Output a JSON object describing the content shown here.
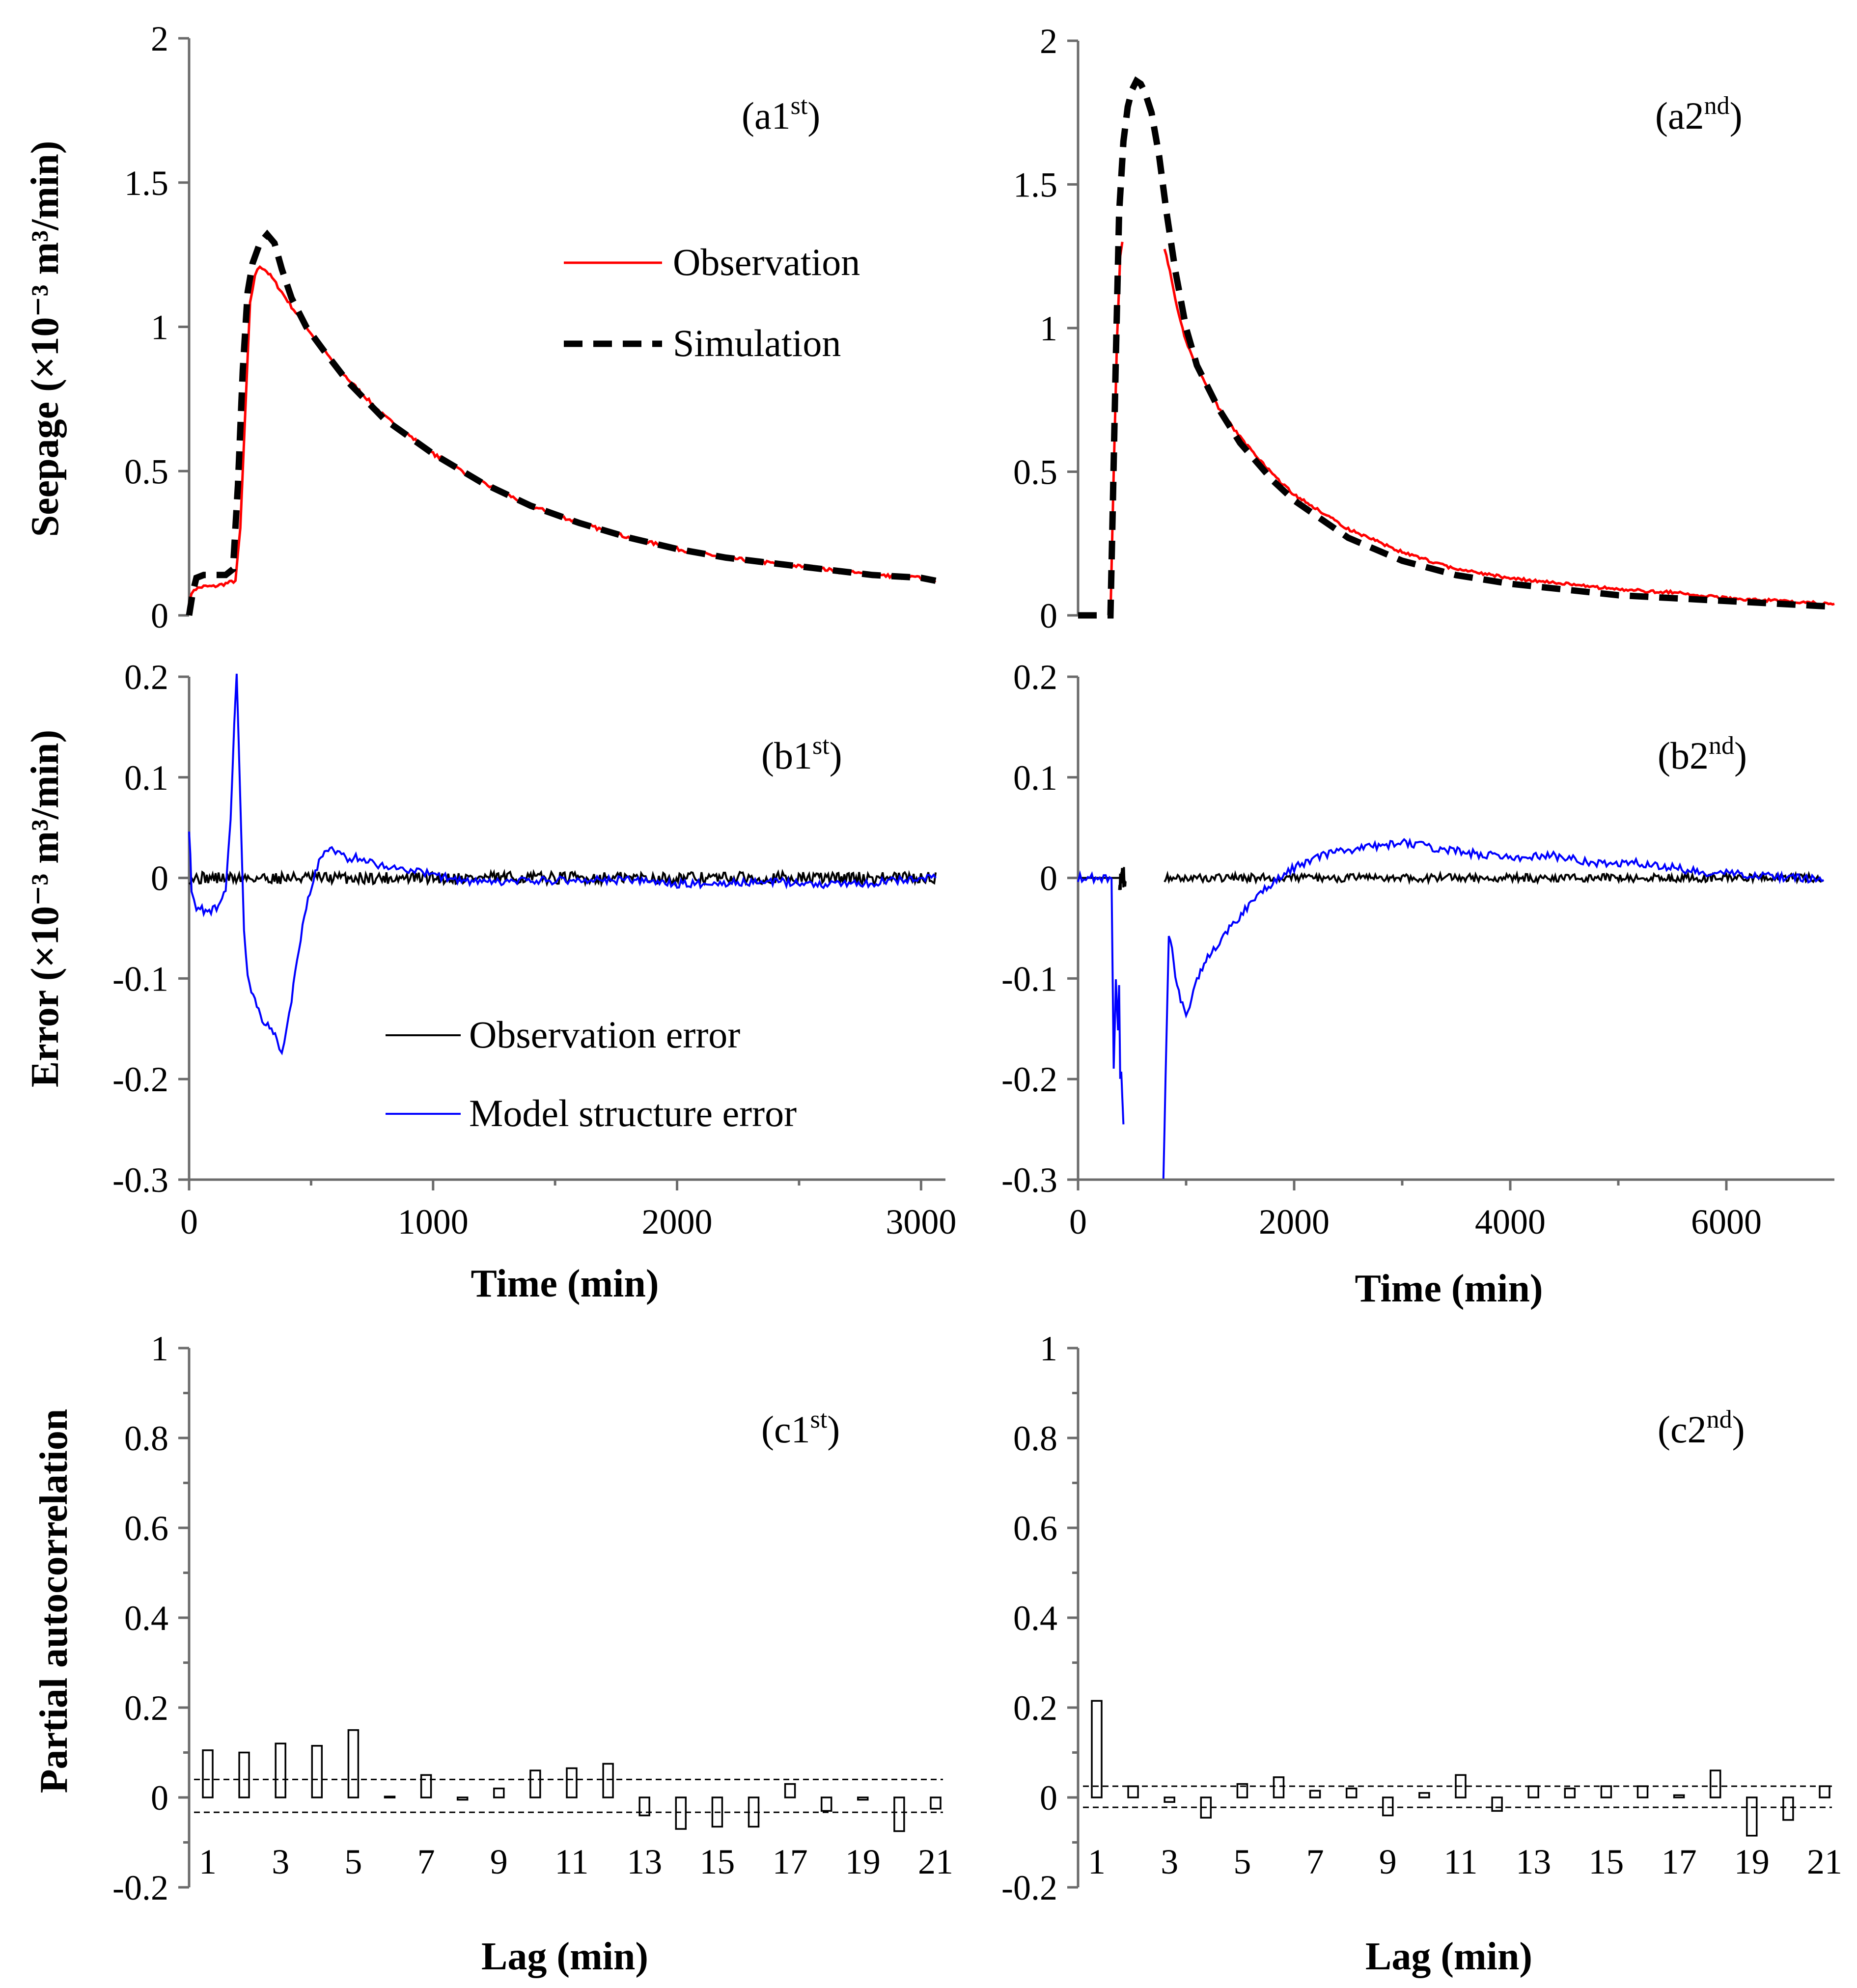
{
  "colors": {
    "observation": "#ff0000",
    "simulation": "#000000",
    "observation_error": "#000000",
    "model_structure_error": "#0000ff",
    "axis": "#6b6b6b",
    "bar_fill": "#ffffff",
    "bar_stroke": "#000000"
  },
  "labels": {
    "seepage_ylabel": "Seepage (×10⁻³ m³/min)",
    "error_ylabel": "Error (×10⁻³ m³/min)",
    "pacf_ylabel": "Partial autocorrelation",
    "time_xlabel": "Time (min)",
    "lag_xlabel": "Lag (min)"
  },
  "chart_data": [
    {
      "id": "a1st",
      "type": "line",
      "panel_label": "(a1st)",
      "xlim": [
        0,
        3100
      ],
      "ylim": [
        0,
        2
      ],
      "yticks": [
        "0",
        "0.5",
        "1",
        "1.5",
        "2"
      ],
      "legend": [
        "Observation",
        "Simulation"
      ],
      "legend_position": "right",
      "series": [
        {
          "name": "Observation",
          "x": [
            0,
            20,
            60,
            100,
            150,
            190,
            210,
            230,
            250,
            270,
            290,
            310,
            340,
            380,
            420,
            480,
            550,
            650,
            800,
            1000,
            1200,
            1400,
            1600,
            1800,
            2000,
            2200,
            2400,
            2600,
            2800,
            3000,
            3060
          ],
          "y": [
            0.05,
            0.09,
            0.1,
            0.1,
            0.11,
            0.12,
            0.3,
            0.7,
            1.08,
            1.18,
            1.21,
            1.2,
            1.17,
            1.12,
            1.07,
            1.0,
            0.92,
            0.82,
            0.69,
            0.56,
            0.46,
            0.38,
            0.32,
            0.27,
            0.23,
            0.2,
            0.18,
            0.16,
            0.14,
            0.13,
            0.12
          ]
        },
        {
          "name": "Simulation",
          "x": [
            0,
            15,
            30,
            60,
            100,
            150,
            180,
            200,
            220,
            240,
            260,
            290,
            320,
            350,
            380,
            420,
            480,
            550,
            650,
            800,
            1000,
            1200,
            1400,
            1600,
            1800,
            2000,
            2200,
            2400,
            2600,
            2800,
            3000,
            3060
          ],
          "y": [
            0.0,
            0.08,
            0.13,
            0.14,
            0.14,
            0.14,
            0.16,
            0.45,
            0.85,
            1.12,
            1.22,
            1.29,
            1.32,
            1.29,
            1.2,
            1.1,
            1.0,
            0.92,
            0.81,
            0.68,
            0.56,
            0.46,
            0.38,
            0.32,
            0.27,
            0.23,
            0.2,
            0.18,
            0.16,
            0.14,
            0.13,
            0.12
          ]
        }
      ]
    },
    {
      "id": "a2nd",
      "type": "line",
      "panel_label": "(a2nd)",
      "xlim": [
        0,
        7000
      ],
      "ylim": [
        0,
        2
      ],
      "yticks": [
        "0",
        "0.5",
        "1",
        "1.5",
        "2"
      ],
      "series": [
        {
          "name": "Observation",
          "segments": [
            {
              "x": [
                300,
                330,
                360,
                390,
                410
              ],
              "y": [
                0.0,
                0.5,
                0.95,
                1.25,
                1.3
              ]
            },
            {
              "x": [
                800,
                850,
                900,
                1000,
                1100,
                1300,
                1500,
                1800,
                2000,
                2500,
                3000,
                3500,
                4000,
                4500,
                5000,
                5500,
                6000,
                6500,
                7000
              ],
              "y": [
                1.28,
                1.2,
                1.1,
                0.95,
                0.87,
                0.72,
                0.62,
                0.49,
                0.42,
                0.3,
                0.22,
                0.16,
                0.13,
                0.11,
                0.09,
                0.08,
                0.06,
                0.05,
                0.04
              ]
            }
          ]
        },
        {
          "name": "Simulation",
          "x": [
            0,
            300,
            320,
            350,
            380,
            420,
            460,
            500,
            540,
            580,
            620,
            680,
            750,
            820,
            900,
            1000,
            1100,
            1300,
            1500,
            1800,
            2000,
            2500,
            3000,
            3500,
            4000,
            4500,
            5000,
            5500,
            6000,
            6500,
            7000
          ],
          "y": [
            0.0,
            0.0,
            0.35,
            0.9,
            1.4,
            1.65,
            1.77,
            1.83,
            1.86,
            1.85,
            1.82,
            1.75,
            1.6,
            1.4,
            1.2,
            1.0,
            0.87,
            0.72,
            0.6,
            0.47,
            0.4,
            0.27,
            0.19,
            0.14,
            0.11,
            0.09,
            0.07,
            0.06,
            0.05,
            0.04,
            0.03
          ]
        }
      ]
    },
    {
      "id": "b1st",
      "type": "line",
      "panel_label": "(b1st)",
      "xlim": [
        0,
        3100
      ],
      "ylim": [
        -0.3,
        0.2
      ],
      "yticks": [
        "-0.3",
        "-0.2",
        "-0.1",
        "0",
        "0.1",
        "0.2"
      ],
      "legend": [
        "Observation error",
        "Model structure error"
      ],
      "legend_position": "bottom-right",
      "series": [
        {
          "name": "Observation error",
          "x": [
            0,
            3060
          ],
          "y": [
            0.0,
            0.0
          ],
          "noise_amplitude": 0.006
        },
        {
          "name": "Model structure error",
          "x": [
            0,
            10,
            30,
            60,
            90,
            120,
            150,
            170,
            185,
            195,
            210,
            225,
            240,
            270,
            300,
            330,
            360,
            380,
            400,
            420,
            450,
            480,
            510,
            540,
            570,
            600,
            650,
            700,
            750,
            800,
            850,
            900,
            1000,
            1100,
            1200,
            1400,
            1600,
            1800,
            2000,
            2200,
            2400,
            2600,
            2800,
            3000,
            3060
          ],
          "y": [
            0.05,
            -0.01,
            -0.03,
            -0.032,
            -0.032,
            -0.028,
            -0.01,
            0.06,
            0.15,
            0.2,
            0.08,
            -0.05,
            -0.1,
            -0.12,
            -0.14,
            -0.15,
            -0.16,
            -0.175,
            -0.15,
            -0.12,
            -0.07,
            -0.03,
            0.0,
            0.02,
            0.03,
            0.025,
            0.02,
            0.02,
            0.015,
            0.012,
            0.01,
            0.008,
            0.003,
            -0.002,
            -0.005,
            -0.003,
            -0.002,
            -0.002,
            -0.006,
            -0.005,
            -0.004,
            -0.006,
            -0.005,
            0.0,
            0.0
          ]
        }
      ]
    },
    {
      "id": "b2nd",
      "type": "line",
      "panel_label": "(b2nd)",
      "xlim": [
        0,
        7000
      ],
      "ylim": [
        -0.3,
        0.2
      ],
      "yticks": [
        "-0.3",
        "-0.2",
        "-0.1",
        "0",
        "0.1",
        "0.2"
      ],
      "series": [
        {
          "name": "Observation error",
          "segments": [
            {
              "x": [
                0,
                380
              ],
              "y": [
                0.0,
                0.0
              ]
            },
            {
              "x": [
                380,
                440
              ],
              "y": [
                0.0,
                0.0
              ],
              "noise_amplitude": 0.012
            },
            {
              "x": [
                800,
                6900
              ],
              "y": [
                0.0,
                0.0
              ],
              "noise_amplitude": 0.004
            }
          ]
        },
        {
          "name": "Model structure error",
          "segments": [
            {
              "x": [
                0,
                310,
                330,
                350,
                370,
                380,
                390,
                400,
                420
              ],
              "y": [
                0.0,
                0.0,
                -0.19,
                -0.1,
                -0.15,
                -0.11,
                -0.2,
                -0.19,
                -0.245
              ]
            },
            {
              "x": [
                790,
                810,
                840,
                870,
                900,
                950,
                1000,
                1100,
                1200,
                1400,
                1600,
                1800,
                2000,
                2200,
                2500,
                2800,
                3000,
                3300,
                3600,
                4000,
                4400,
                4800,
                5200,
                5500,
                5800,
                6000,
                6300,
                6600,
                6900
              ],
              "y": [
                -0.295,
                -0.2,
                -0.06,
                -0.07,
                -0.1,
                -0.12,
                -0.14,
                -0.1,
                -0.08,
                -0.05,
                -0.025,
                -0.005,
                0.01,
                0.02,
                0.028,
                0.032,
                0.035,
                0.03,
                0.025,
                0.02,
                0.022,
                0.015,
                0.015,
                0.01,
                0.005,
                0.005,
                0.002,
                0.0,
                -0.002
              ]
            }
          ]
        }
      ]
    },
    {
      "id": "c1st",
      "type": "bar",
      "panel_label": "(c1st)",
      "ylim": [
        -0.2,
        1
      ],
      "yticks": [
        "-0.2",
        "0",
        "0.2",
        "0.4",
        "0.6",
        "0.8",
        "1"
      ],
      "categories": [
        "1",
        "2",
        "3",
        "4",
        "5",
        "6",
        "7",
        "8",
        "9",
        "10",
        "11",
        "12",
        "13",
        "14",
        "15",
        "16",
        "17",
        "18",
        "19",
        "20",
        "21"
      ],
      "xtick_labels": [
        "1",
        "3",
        "5",
        "7",
        "9",
        "11",
        "13",
        "15",
        "17",
        "19",
        "21"
      ],
      "values": [
        0.105,
        0.1,
        0.12,
        0.115,
        0.15,
        0.002,
        0.05,
        -0.005,
        0.02,
        0.06,
        0.065,
        0.075,
        -0.04,
        -0.07,
        -0.065,
        -0.065,
        0.03,
        -0.03,
        -0.005,
        -0.075,
        -0.025
      ],
      "confidence_bounds": [
        0.04,
        -0.033
      ]
    },
    {
      "id": "c2nd",
      "type": "bar",
      "panel_label": "(c2nd)",
      "ylim": [
        -0.2,
        1
      ],
      "yticks": [
        "-0.2",
        "0",
        "0.2",
        "0.4",
        "0.6",
        "0.8",
        "1"
      ],
      "categories": [
        "1",
        "2",
        "3",
        "4",
        "5",
        "6",
        "7",
        "8",
        "9",
        "10",
        "11",
        "12",
        "13",
        "14",
        "15",
        "16",
        "17",
        "18",
        "19",
        "20",
        "21"
      ],
      "xtick_labels": [
        "1",
        "3",
        "5",
        "7",
        "9",
        "11",
        "13",
        "15",
        "17",
        "19",
        "21"
      ],
      "values": [
        0.215,
        0.025,
        -0.01,
        -0.045,
        0.03,
        0.045,
        0.015,
        0.02,
        -0.04,
        0.01,
        0.05,
        -0.03,
        0.025,
        0.02,
        0.025,
        0.025,
        0.005,
        0.06,
        -0.085,
        -0.05,
        0.025
      ],
      "confidence_bounds": [
        0.025,
        -0.022
      ]
    }
  ],
  "time_xticks": {
    "first": [
      "0",
      "1000",
      "2000",
      "3000"
    ],
    "second": [
      "0",
      "2000",
      "4000",
      "6000"
    ]
  }
}
